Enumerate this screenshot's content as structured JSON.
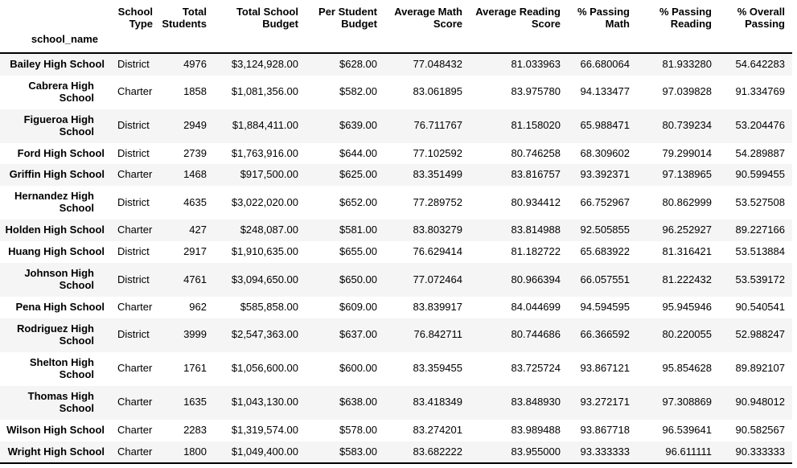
{
  "table": {
    "index_name": "school_name",
    "columns": [
      {
        "id": "school-type",
        "label": "School\nType"
      },
      {
        "id": "total-students",
        "label": "Total\nStudents"
      },
      {
        "id": "total-school-budget",
        "label": "Total School\nBudget"
      },
      {
        "id": "per-student-budget",
        "label": "Per Student\nBudget"
      },
      {
        "id": "average-math-score",
        "label": "Average Math\nScore"
      },
      {
        "id": "average-reading-score",
        "label": "Average Reading\nScore"
      },
      {
        "id": "pct-passing-math",
        "label": "% Passing\nMath"
      },
      {
        "id": "pct-passing-reading",
        "label": "% Passing\nReading"
      },
      {
        "id": "pct-overall-passing",
        "label": "% Overall\nPassing"
      }
    ],
    "rows": [
      {
        "name": "Bailey High School",
        "values": [
          "District",
          "4976",
          "$3,124,928.00",
          "$628.00",
          "77.048432",
          "81.033963",
          "66.680064",
          "81.933280",
          "54.642283"
        ]
      },
      {
        "name": "Cabrera High\nSchool",
        "values": [
          "Charter",
          "1858",
          "$1,081,356.00",
          "$582.00",
          "83.061895",
          "83.975780",
          "94.133477",
          "97.039828",
          "91.334769"
        ]
      },
      {
        "name": "Figueroa High\nSchool",
        "values": [
          "District",
          "2949",
          "$1,884,411.00",
          "$639.00",
          "76.711767",
          "81.158020",
          "65.988471",
          "80.739234",
          "53.204476"
        ]
      },
      {
        "name": "Ford High School",
        "values": [
          "District",
          "2739",
          "$1,763,916.00",
          "$644.00",
          "77.102592",
          "80.746258",
          "68.309602",
          "79.299014",
          "54.289887"
        ]
      },
      {
        "name": "Griffin High School",
        "values": [
          "Charter",
          "1468",
          "$917,500.00",
          "$625.00",
          "83.351499",
          "83.816757",
          "93.392371",
          "97.138965",
          "90.599455"
        ]
      },
      {
        "name": "Hernandez High\nSchool",
        "values": [
          "District",
          "4635",
          "$3,022,020.00",
          "$652.00",
          "77.289752",
          "80.934412",
          "66.752967",
          "80.862999",
          "53.527508"
        ]
      },
      {
        "name": "Holden High School",
        "values": [
          "Charter",
          "427",
          "$248,087.00",
          "$581.00",
          "83.803279",
          "83.814988",
          "92.505855",
          "96.252927",
          "89.227166"
        ]
      },
      {
        "name": "Huang High School",
        "values": [
          "District",
          "2917",
          "$1,910,635.00",
          "$655.00",
          "76.629414",
          "81.182722",
          "65.683922",
          "81.316421",
          "53.513884"
        ]
      },
      {
        "name": "Johnson High\nSchool",
        "values": [
          "District",
          "4761",
          "$3,094,650.00",
          "$650.00",
          "77.072464",
          "80.966394",
          "66.057551",
          "81.222432",
          "53.539172"
        ]
      },
      {
        "name": "Pena High School",
        "values": [
          "Charter",
          "962",
          "$585,858.00",
          "$609.00",
          "83.839917",
          "84.044699",
          "94.594595",
          "95.945946",
          "90.540541"
        ]
      },
      {
        "name": "Rodriguez High\nSchool",
        "values": [
          "District",
          "3999",
          "$2,547,363.00",
          "$637.00",
          "76.842711",
          "80.744686",
          "66.366592",
          "80.220055",
          "52.988247"
        ]
      },
      {
        "name": "Shelton High\nSchool",
        "values": [
          "Charter",
          "1761",
          "$1,056,600.00",
          "$600.00",
          "83.359455",
          "83.725724",
          "93.867121",
          "95.854628",
          "89.892107"
        ]
      },
      {
        "name": "Thomas High\nSchool",
        "values": [
          "Charter",
          "1635",
          "$1,043,130.00",
          "$638.00",
          "83.418349",
          "83.848930",
          "93.272171",
          "97.308869",
          "90.948012"
        ]
      },
      {
        "name": "Wilson High School",
        "values": [
          "Charter",
          "2283",
          "$1,319,574.00",
          "$578.00",
          "83.274201",
          "83.989488",
          "93.867718",
          "96.539641",
          "90.582567"
        ]
      },
      {
        "name": "Wright High School",
        "values": [
          "Charter",
          "1800",
          "$1,049,400.00",
          "$583.00",
          "83.682222",
          "83.955000",
          "93.333333",
          "96.611111",
          "90.333333"
        ]
      }
    ]
  },
  "style": {
    "stripe_color": "#f5f5f5",
    "rule_color": "#000000",
    "text_color": "#000000"
  }
}
